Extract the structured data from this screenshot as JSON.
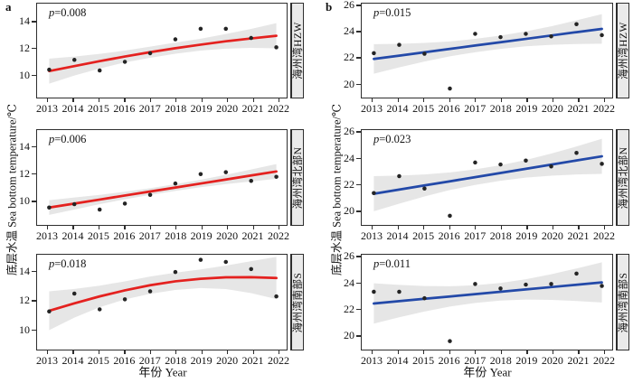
{
  "figure": {
    "panel_tags": {
      "a": "a",
      "b": "b"
    },
    "x_axis_title": "年份 Year",
    "y_axis_title": "底层水温 Sea bottom temperature/℃",
    "colors": {
      "red_line": "#e4211f",
      "blue_line": "#2349a8",
      "ci_band": "#e2e2e2",
      "point": "#242424",
      "panel_border": "#2e2e2e",
      "strip_fill": "#eaeaea"
    }
  },
  "chart_data": [
    {
      "id": "a1",
      "type": "scatter+smooth",
      "col": 0,
      "row": 0,
      "p_label": "p=0.008",
      "strip_label": "海州湾HZW",
      "line_color": "#e4211f",
      "x": [
        2013,
        2014,
        2015,
        2016,
        2017,
        2018,
        2019,
        2020,
        2021,
        2022
      ],
      "points": [
        10.4,
        11.15,
        10.35,
        11.0,
        11.65,
        12.7,
        13.5,
        13.5,
        12.8,
        12.1
      ],
      "trend": [
        10.3,
        10.68,
        11.05,
        11.4,
        11.73,
        12.03,
        12.3,
        12.55,
        12.77,
        12.97
      ],
      "ci_upper": [
        11.25,
        11.4,
        11.6,
        11.85,
        12.15,
        12.45,
        12.75,
        13.1,
        13.49,
        13.92
      ],
      "ci_lower": [
        9.35,
        9.96,
        10.5,
        10.95,
        11.31,
        11.61,
        11.85,
        12.0,
        12.05,
        12.02
      ],
      "yticks": [
        10,
        12,
        14
      ],
      "ylim": [
        8.3,
        15.4
      ]
    },
    {
      "id": "a2",
      "type": "scatter+smooth",
      "col": 0,
      "row": 1,
      "p_label": "p=0.006",
      "strip_label": "海州湾北部N",
      "line_color": "#e4211f",
      "x": [
        2013,
        2014,
        2015,
        2016,
        2017,
        2018,
        2019,
        2020,
        2021,
        2022
      ],
      "points": [
        9.5,
        9.75,
        9.35,
        9.8,
        10.45,
        11.3,
        12.0,
        12.15,
        11.5,
        11.8
      ],
      "trend": [
        9.5,
        9.8,
        10.1,
        10.4,
        10.7,
        11.0,
        11.3,
        11.6,
        11.9,
        12.2
      ],
      "ci_upper": [
        10.05,
        10.25,
        10.45,
        10.68,
        10.95,
        11.25,
        11.58,
        11.95,
        12.35,
        12.75
      ],
      "ci_lower": [
        8.95,
        9.35,
        9.75,
        10.12,
        10.45,
        10.75,
        11.02,
        11.25,
        11.45,
        11.65
      ],
      "yticks": [
        10,
        12,
        14
      ],
      "ylim": [
        8.2,
        15.3
      ]
    },
    {
      "id": "a3",
      "type": "scatter+smooth",
      "col": 0,
      "row": 2,
      "p_label": "p=0.018",
      "strip_label": "海州湾南部S",
      "line_color": "#e4211f",
      "x": [
        2013,
        2014,
        2015,
        2016,
        2017,
        2018,
        2019,
        2020,
        2021,
        2022
      ],
      "points": [
        11.25,
        12.5,
        11.4,
        12.1,
        12.65,
        14.0,
        14.85,
        14.7,
        14.2,
        12.3
      ],
      "trend": [
        11.3,
        11.82,
        12.3,
        12.72,
        13.08,
        13.35,
        13.53,
        13.63,
        13.64,
        13.58
      ],
      "ci_upper": [
        12.65,
        12.82,
        13.05,
        13.35,
        13.68,
        13.95,
        14.18,
        14.45,
        14.75,
        15.05
      ],
      "ci_lower": [
        9.95,
        10.82,
        11.55,
        12.09,
        12.48,
        12.75,
        12.88,
        12.81,
        12.53,
        12.11
      ],
      "yticks": [
        10,
        12,
        14
      ],
      "ylim": [
        8.6,
        15.2
      ]
    },
    {
      "id": "b1",
      "type": "scatter+smooth",
      "col": 1,
      "row": 0,
      "p_label": "p=0.015",
      "strip_label": "海州湾HZW",
      "line_color": "#2349a8",
      "x": [
        2013,
        2014,
        2015,
        2016,
        2017,
        2018,
        2019,
        2020,
        2021,
        2022
      ],
      "points": [
        22.35,
        23.0,
        22.3,
        19.6,
        23.85,
        23.6,
        23.85,
        23.65,
        24.6,
        23.75
      ],
      "trend": [
        21.9,
        22.16,
        22.42,
        22.68,
        22.94,
        23.2,
        23.46,
        23.72,
        23.98,
        24.24
      ],
      "ci_upper": [
        23.05,
        23.08,
        23.14,
        23.26,
        23.46,
        23.72,
        24.04,
        24.44,
        24.9,
        25.39
      ],
      "ci_lower": [
        20.75,
        21.24,
        21.7,
        22.1,
        22.42,
        22.68,
        22.88,
        23.0,
        23.06,
        23.09
      ],
      "yticks": [
        20,
        22,
        24,
        26
      ],
      "ylim": [
        18.9,
        26.2
      ]
    },
    {
      "id": "b2",
      "type": "scatter+smooth",
      "col": 1,
      "row": 1,
      "p_label": "p=0.023",
      "strip_label": "海州湾北部N",
      "line_color": "#2349a8",
      "x": [
        2013,
        2014,
        2015,
        2016,
        2017,
        2018,
        2019,
        2020,
        2021,
        2022
      ],
      "points": [
        21.35,
        22.65,
        21.7,
        19.6,
        23.7,
        23.55,
        23.85,
        23.4,
        24.45,
        23.6
      ],
      "trend": [
        21.3,
        21.62,
        21.94,
        22.26,
        22.58,
        22.9,
        23.22,
        23.54,
        23.86,
        24.18
      ],
      "ci_upper": [
        22.65,
        22.7,
        22.79,
        22.94,
        23.18,
        23.5,
        23.9,
        24.39,
        24.94,
        25.53
      ],
      "ci_lower": [
        19.95,
        20.54,
        21.09,
        21.58,
        21.98,
        22.3,
        22.54,
        22.69,
        22.78,
        22.83
      ],
      "yticks": [
        20,
        22,
        24,
        26
      ],
      "ylim": [
        18.9,
        26.2
      ]
    },
    {
      "id": "b3",
      "type": "scatter+smooth",
      "col": 1,
      "row": 2,
      "p_label": "p=0.011",
      "strip_label": "海州湾南部S",
      "line_color": "#2349a8",
      "x": [
        2013,
        2014,
        2015,
        2016,
        2017,
        2018,
        2019,
        2020,
        2021,
        2022
      ],
      "points": [
        23.35,
        23.35,
        22.85,
        19.55,
        23.95,
        23.6,
        23.9,
        23.95,
        24.75,
        23.8
      ],
      "trend": [
        22.45,
        22.63,
        22.81,
        22.99,
        23.17,
        23.35,
        23.53,
        23.71,
        23.89,
        24.07
      ],
      "ci_upper": [
        24.0,
        23.88,
        23.79,
        23.77,
        23.85,
        24.03,
        24.31,
        24.69,
        25.14,
        25.62
      ],
      "ci_lower": [
        20.9,
        21.38,
        21.83,
        22.21,
        22.49,
        22.67,
        22.75,
        22.73,
        22.64,
        22.52
      ],
      "yticks": [
        20,
        22,
        24,
        26
      ],
      "ylim": [
        18.9,
        26.2
      ]
    }
  ]
}
